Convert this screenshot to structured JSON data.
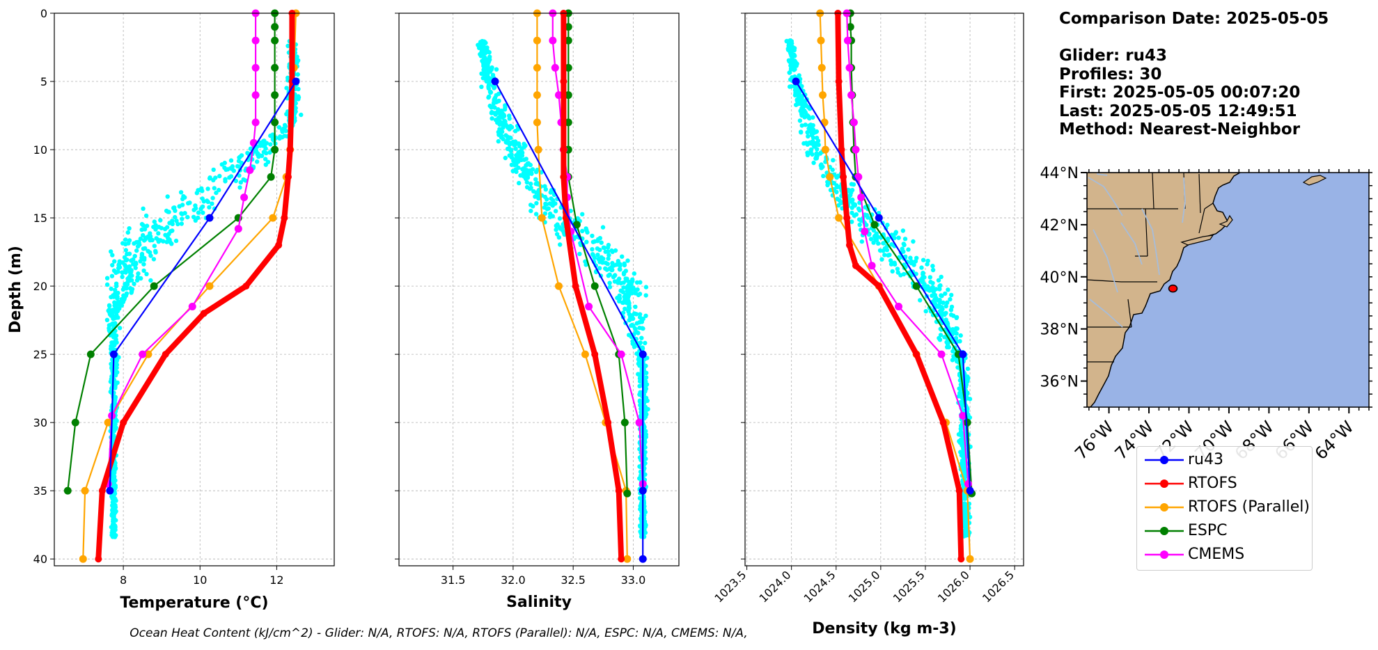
{
  "info": {
    "comparison_date": "Comparison Date: 2025-05-05",
    "glider": "Glider: ru43",
    "profiles": "Profiles: 30",
    "first": "First: 2025-05-05 00:07:20",
    "last": "Last: 2025-05-05 12:49:51",
    "method": "Method: Nearest-Neighbor"
  },
  "footer": "Ocean Heat Content (kJ/cm^2) - Glider: N/A,  RTOFS: N/A,  RTOFS (Parallel): N/A,  ESPC: N/A,  CMEMS: N/A,",
  "colors": {
    "glider_scatter": "#00ffff",
    "ru43": "#0000ff",
    "rtofs": "#ff0000",
    "rtofs_parallel": "#ffa500",
    "espc": "#008000",
    "cmems": "#ff00ff",
    "land": "#d2b48c",
    "ocean": "#99b3e6",
    "rivers": "#a6bddb"
  },
  "legend": {
    "items": [
      {
        "label": "ru43",
        "color": "#0000ff"
      },
      {
        "label": "RTOFS",
        "color": "#ff0000"
      },
      {
        "label": "RTOFS (Parallel)",
        "color": "#ffa500"
      },
      {
        "label": "ESPC",
        "color": "#008000"
      },
      {
        "label": "CMEMS",
        "color": "#ff00ff"
      }
    ]
  },
  "chart_data": [
    {
      "type": "line",
      "xlabel": "Temperature (°C)",
      "ylabel": "Depth (m)",
      "xlim": [
        6.2,
        13.5
      ],
      "ylim": [
        40.5,
        0
      ],
      "xticks": [
        8,
        10,
        12
      ],
      "yticks": [
        0,
        5,
        10,
        15,
        20,
        25,
        30,
        35,
        40
      ],
      "grid": true,
      "series": [
        {
          "name": "ru43",
          "x": [
            12.5,
            10.25,
            7.75,
            7.65
          ],
          "y": [
            5,
            15,
            25,
            35
          ]
        },
        {
          "name": "RTOFS",
          "x": [
            12.4,
            12.4,
            12.35,
            12.3,
            12.2,
            12.05,
            11.2,
            10.1,
            9.1,
            8.0,
            7.45,
            7.35
          ],
          "y": [
            0,
            5,
            10,
            12,
            15,
            17,
            20,
            22,
            25,
            30,
            35,
            40
          ]
        },
        {
          "name": "RTOFS (Parallel)",
          "x": [
            12.5,
            12.45,
            12.35,
            12.25,
            11.9,
            10.25,
            8.65,
            7.6,
            7.0,
            6.95
          ],
          "y": [
            0,
            4,
            10,
            12,
            15,
            20,
            25,
            30,
            35,
            40
          ]
        },
        {
          "name": "ESPC",
          "x": [
            11.95,
            11.95,
            11.95,
            11.95,
            11.95,
            11.95,
            11.95,
            11.85,
            11.0,
            8.8,
            7.15,
            6.75,
            6.55
          ],
          "y": [
            0,
            1,
            2,
            4,
            6,
            8,
            10,
            12,
            15,
            20,
            25,
            30,
            35
          ]
        },
        {
          "name": "CMEMS",
          "x": [
            11.45,
            11.45,
            11.45,
            11.45,
            11.45,
            11.4,
            11.3,
            11.15,
            11.0,
            9.8,
            8.5,
            7.7,
            7.6
          ],
          "y": [
            0,
            2,
            4,
            6,
            8,
            9.5,
            11.5,
            13.5,
            15.8,
            21.5,
            25,
            29.5,
            34.5
          ]
        }
      ]
    },
    {
      "type": "line",
      "xlabel": "Salinity",
      "ylabel": "",
      "xlim": [
        31.05,
        33.38
      ],
      "ylim": [
        40.5,
        0
      ],
      "xticks": [
        31.5,
        32.0,
        32.5,
        33.0
      ],
      "grid": true,
      "series": [
        {
          "name": "ru43",
          "x": [
            31.85,
            33.08,
            33.08,
            33.08
          ],
          "y": [
            5,
            25,
            35,
            40
          ]
        },
        {
          "name": "RTOFS",
          "x": [
            32.42,
            32.42,
            32.42,
            32.42,
            32.44,
            32.52,
            32.68,
            32.79,
            32.88,
            32.9
          ],
          "y": [
            0,
            5,
            10,
            12,
            15,
            20,
            25,
            30,
            35,
            40
          ]
        },
        {
          "name": "RTOFS (Parallel)",
          "x": [
            32.2,
            32.2,
            32.2,
            32.2,
            32.2,
            32.21,
            32.24,
            32.38,
            32.6,
            32.77,
            32.94,
            32.95
          ],
          "y": [
            0,
            2,
            4,
            6,
            8,
            10,
            15,
            20,
            25,
            30,
            35,
            40
          ]
        },
        {
          "name": "ESPC",
          "x": [
            32.46,
            32.46,
            32.46,
            32.46,
            32.46,
            32.46,
            32.46,
            32.46,
            32.53,
            32.68,
            32.88,
            32.93,
            32.95
          ],
          "y": [
            0,
            1,
            2,
            4,
            6,
            8,
            10,
            12,
            15.5,
            20,
            25,
            30,
            35.2
          ]
        },
        {
          "name": "CMEMS",
          "x": [
            32.33,
            32.33,
            32.35,
            32.38,
            32.4,
            32.42,
            32.45,
            32.45,
            32.48,
            32.63,
            32.9,
            33.05,
            33.08
          ],
          "y": [
            0,
            2,
            4,
            6,
            8,
            10,
            12,
            13.5,
            16,
            21.5,
            25,
            30,
            34.5
          ]
        }
      ]
    },
    {
      "type": "line",
      "xlabel": "Density (kg m-3)",
      "ylabel": "",
      "xlim": [
        1023.48,
        1026.6
      ],
      "ylim": [
        40.5,
        0
      ],
      "xticks": [
        1023.5,
        1024.0,
        1024.5,
        1025.0,
        1025.5,
        1026.0,
        1026.5
      ],
      "grid": true,
      "series": [
        {
          "name": "ru43",
          "x": [
            1024.05,
            1024.98,
            1025.92,
            1026.0
          ],
          "y": [
            5,
            15,
            25,
            35
          ]
        },
        {
          "name": "RTOFS",
          "x": [
            1024.52,
            1024.53,
            1024.56,
            1024.58,
            1024.62,
            1024.65,
            1024.72,
            1024.98,
            1025.4,
            1025.7,
            1025.88,
            1025.9
          ],
          "y": [
            0,
            5,
            10,
            12,
            15,
            17,
            18.5,
            20,
            25,
            30,
            35,
            40
          ]
        },
        {
          "name": "RTOFS (Parallel)",
          "x": [
            1024.32,
            1024.33,
            1024.34,
            1024.35,
            1024.37,
            1024.38,
            1024.43,
            1024.53,
            1024.98,
            1025.4,
            1025.73,
            1025.97,
            1026.0
          ],
          "y": [
            0,
            2,
            4,
            6,
            8,
            10,
            12,
            15,
            20,
            25,
            30,
            35,
            40
          ]
        },
        {
          "name": "ESPC",
          "x": [
            1024.66,
            1024.66,
            1024.67,
            1024.67,
            1024.68,
            1024.69,
            1024.7,
            1024.72,
            1024.93,
            1025.4,
            1025.87,
            1025.97,
            1026.02
          ],
          "y": [
            0,
            1,
            2,
            4,
            6,
            8,
            10,
            12,
            15.5,
            20,
            25,
            30,
            35.2
          ]
        },
        {
          "name": "CMEMS",
          "x": [
            1024.62,
            1024.63,
            1024.65,
            1024.67,
            1024.7,
            1024.72,
            1024.75,
            1024.78,
            1024.82,
            1024.9,
            1025.2,
            1025.68,
            1025.92,
            1025.98
          ],
          "y": [
            0,
            2,
            4,
            6,
            8,
            10,
            12,
            13.5,
            16,
            18.5,
            21.5,
            25,
            29.5,
            34.5
          ]
        }
      ]
    },
    {
      "type": "map",
      "lon_range": [
        -77.1,
        -63.0
      ],
      "lat_range": [
        35.0,
        44.0
      ],
      "xticks": [
        "76°W",
        "74°W",
        "72°W",
        "70°W",
        "68°W",
        "66°W",
        "64°W"
      ],
      "xtick_values": [
        -76,
        -74,
        -72,
        -70,
        -68,
        -66,
        -64
      ],
      "yticks": [
        "36°N",
        "38°N",
        "40°N",
        "42°N",
        "44°N"
      ],
      "ytick_values": [
        36,
        38,
        40,
        42,
        44
      ],
      "glider_location": {
        "lon": -72.8,
        "lat": 39.55
      }
    }
  ]
}
